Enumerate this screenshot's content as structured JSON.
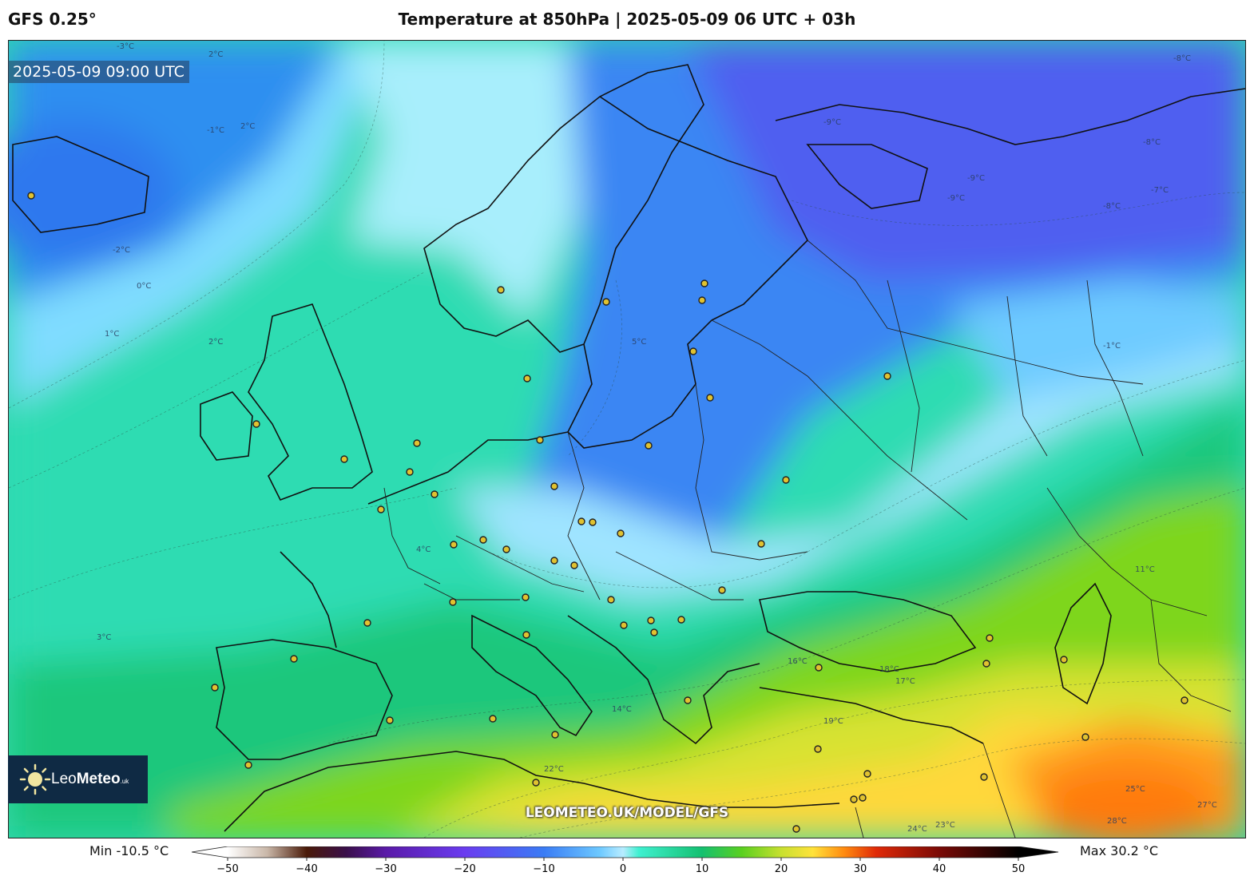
{
  "header": {
    "model": "GFS 0.25°",
    "title": "Temperature at 850hPa | 2025-05-09 06 UTC + 03h"
  },
  "map": {
    "valid_time": "2025-05-09 09:00 UTC",
    "watermark": "LEOMETEO.UK/MODEL/GFS",
    "logo": {
      "name_light": "Leo",
      "name_bold": "Meteo",
      "suffix": "uk"
    },
    "isotherm_labels": [
      "-3°C",
      "2°C",
      "-1°C",
      "2°C",
      "-2°C",
      "0°C",
      "1°C",
      "2°C",
      "3°C",
      "4°C",
      "5°C",
      "-8°C",
      "-9°C",
      "-9°C",
      "-8°C",
      "-7°C",
      "-9°C",
      "-8°C",
      "-1°C",
      "11°C",
      "14°C",
      "16°C",
      "17°C",
      "18°C",
      "19°C",
      "22°C",
      "24°C",
      "23°C",
      "25°C",
      "27°C",
      "28°C"
    ]
  },
  "colorbar": {
    "min_label": "Min -10.5 °C",
    "max_label": "Max 30.2 °C",
    "ticks": [
      "−50",
      "−40",
      "−30",
      "−20",
      "−10",
      "0",
      "10",
      "20",
      "30",
      "40",
      "50"
    ],
    "range": [
      -50,
      50
    ],
    "stops": [
      {
        "value": -50,
        "color": "#ffffff"
      },
      {
        "value": -45,
        "color": "#c9b7a8"
      },
      {
        "value": -40,
        "color": "#4a1a08"
      },
      {
        "value": -35,
        "color": "#3a0f4a"
      },
      {
        "value": -30,
        "color": "#5a1aa8"
      },
      {
        "value": -20,
        "color": "#6a3cf0"
      },
      {
        "value": -10,
        "color": "#3a7cf5"
      },
      {
        "value": -3,
        "color": "#6cc8ff"
      },
      {
        "value": 0,
        "color": "#b8ecff"
      },
      {
        "value": 2,
        "color": "#3ff0d0"
      },
      {
        "value": 10,
        "color": "#14c070"
      },
      {
        "value": 15,
        "color": "#5ad020"
      },
      {
        "value": 20,
        "color": "#c8e030"
      },
      {
        "value": 24,
        "color": "#ffe23a"
      },
      {
        "value": 28,
        "color": "#ff8a10"
      },
      {
        "value": 32,
        "color": "#e02a08"
      },
      {
        "value": 40,
        "color": "#7a0a06"
      },
      {
        "value": 50,
        "color": "#000000"
      }
    ]
  }
}
